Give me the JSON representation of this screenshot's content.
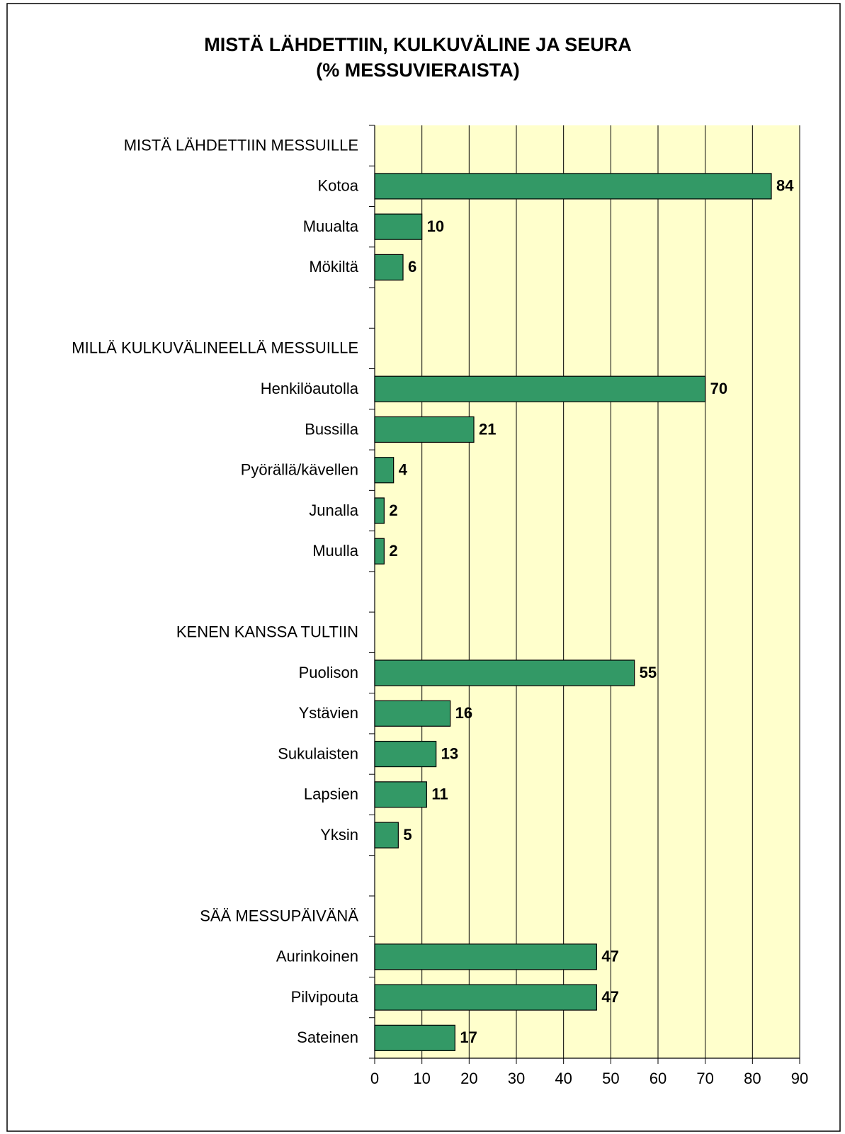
{
  "chart_data": {
    "type": "bar",
    "orientation": "horizontal",
    "title": "MISTÄ LÄHDETTIIN, KULKUVÄLINE JA SEURA",
    "subtitle": "(% MESSUVIERAISTA)",
    "categories": [
      "MISTÄ LÄHDETTIIN MESSUILLE",
      "Kotoa",
      "Muualta",
      "Mökiltä",
      null,
      "MILLÄ KULKUVÄLINEELLÄ MESSUILLE",
      "Henkilöautolla",
      "Bussilla",
      "Pyörällä/kävellen",
      "Junalla",
      "Muulla",
      null,
      "KENEN KANSSA TULTIIN",
      "Puolison",
      "Ystävien",
      "Sukulaisten",
      "Lapsien",
      "Yksin",
      null,
      "SÄÄ MESSUPÄIVÄNÄ",
      "Aurinkoinen",
      "Pilvipouta",
      "Sateinen"
    ],
    "values": [
      null,
      84,
      10,
      6,
      null,
      null,
      70,
      21,
      4,
      2,
      2,
      null,
      null,
      55,
      16,
      13,
      11,
      5,
      null,
      null,
      47,
      47,
      17
    ],
    "color": "#339966",
    "xlim": [
      0,
      90
    ],
    "xticks": [
      0,
      10,
      20,
      30,
      40,
      50,
      60,
      70,
      80,
      90
    ],
    "grid": true
  }
}
